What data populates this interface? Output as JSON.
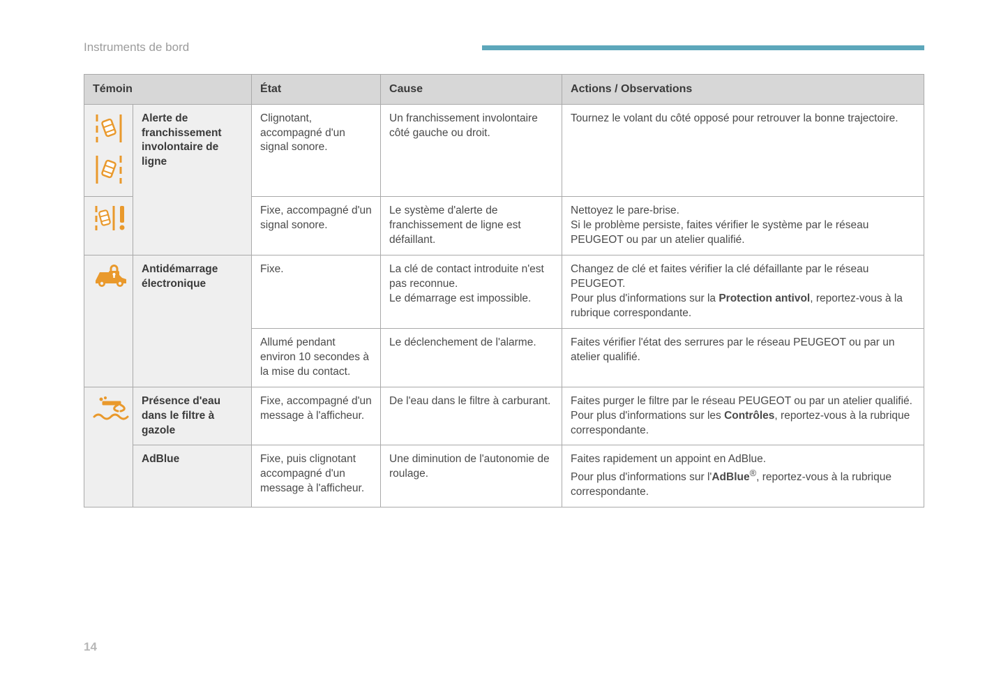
{
  "section_title": "Instruments de bord",
  "page_number": "14",
  "accent_bar_color": "#5da7bb",
  "icon_color": "#e9992c",
  "headers": {
    "col1": "Témoin",
    "col2": "État",
    "col3": "Cause",
    "col4": "Actions / Observations"
  },
  "rows": {
    "r1": {
      "name": "Alerte de franchissement involontaire de ligne",
      "state": "Clignotant, accompagné d'un signal sonore.",
      "cause": "Un franchissement involontaire côté gauche ou droit.",
      "action": "Tournez le volant du côté opposé pour retrouver la bonne trajectoire."
    },
    "r2": {
      "state": "Fixe, accompagné d'un signal sonore.",
      "cause": "Le système d'alerte de franchissement de ligne est défaillant.",
      "action": "Nettoyez le pare-brise.\nSi le problème persiste, faites vérifier le système par le réseau PEUGEOT ou par un atelier qualifié."
    },
    "r3": {
      "name": "Antidémarrage électronique",
      "state": "Fixe.",
      "cause": "La clé de contact introduite n'est pas reconnue.\nLe démarrage est impossible.",
      "action_pre": "Changez de clé et faites vérifier la clé défaillante par le réseau PEUGEOT.\nPour plus d'informations sur la ",
      "action_bold": "Protection antivol",
      "action_post": ", reportez-vous à la rubrique correspondante."
    },
    "r4": {
      "state": "Allumé pendant environ 10 secondes à la mise du contact.",
      "cause": "Le déclenchement de l'alarme.",
      "action": "Faites vérifier l'état des serrures par le réseau PEUGEOT ou par un atelier qualifié."
    },
    "r5": {
      "name": "Présence d'eau dans le filtre à gazole",
      "state": "Fixe, accompagné d'un message à l'afficheur.",
      "cause": "De l'eau dans le filtre à carburant.",
      "action_pre": "Faites purger le filtre par le réseau PEUGEOT ou par un atelier qualifié.\nPour plus d'informations sur les ",
      "action_bold": "Contrôles",
      "action_post": ", reportez-vous à la rubrique correspondante."
    },
    "r6": {
      "name": "AdBlue",
      "state": "Fixe, puis clignotant accompagné d'un message à l'afficheur.",
      "cause": "Une diminution de l'autonomie de roulage.",
      "action_pre": "Faites rapidement un appoint en AdBlue.\nPour plus d'informations sur l'",
      "action_bold": "AdBlue",
      "action_sup": "®",
      "action_post": ", reportez-vous à la rubrique correspondante."
    }
  }
}
